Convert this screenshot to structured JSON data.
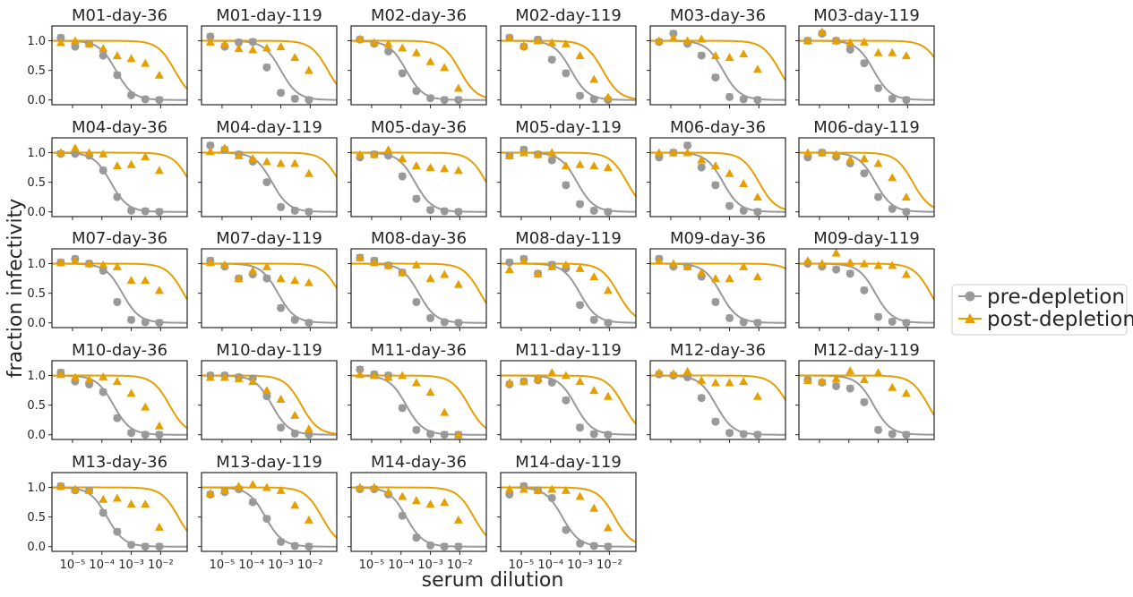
{
  "chart_data": {
    "type": "line",
    "xlabel": "serum dilution",
    "ylabel": "fraction infectivity",
    "xscale": "log",
    "xlim": [
      2e-06,
      0.08
    ],
    "ylim": [
      -0.08,
      1.25
    ],
    "x_ticks": [
      "10⁻⁵",
      "10⁻⁴",
      "10⁻³",
      "10⁻²"
    ],
    "y_ticks": [
      "0.0",
      "0.5",
      "1.0"
    ],
    "x": [
      4e-06,
      1.23e-05,
      3.7e-05,
      0.000111,
      0.000333,
      0.001,
      0.003,
      0.009
    ],
    "legend": {
      "placement": "right",
      "entries": [
        {
          "label": "pre-depletion",
          "color": "#999999",
          "marker": "circle"
        },
        {
          "label": "post-depletion",
          "color": "#E69F00",
          "marker": "triangle"
        }
      ]
    },
    "panels": [
      {
        "title": "M01-day-36",
        "ic50_pre": 0.0003,
        "ic50_post": 0.03,
        "pre": [
          1.05,
          0.9,
          0.95,
          0.75,
          0.42,
          0.08,
          0.01,
          0.0
        ],
        "post": [
          0.97,
          1.0,
          0.95,
          0.87,
          0.75,
          0.7,
          0.62,
          0.42
        ]
      },
      {
        "title": "M01-day-119",
        "ic50_pre": 0.001,
        "ic50_post": 0.04,
        "pre": [
          1.07,
          0.9,
          0.97,
          0.98,
          0.55,
          0.12,
          0.02,
          0.0
        ],
        "post": [
          0.98,
          0.95,
          0.87,
          0.85,
          0.88,
          0.9,
          0.72,
          0.5
        ]
      },
      {
        "title": "M02-day-36",
        "ic50_pre": 0.00015,
        "ic50_post": 0.01,
        "pre": [
          1.02,
          0.95,
          0.82,
          0.45,
          0.15,
          0.03,
          0.0,
          0.0
        ],
        "post": [
          1.03,
          0.97,
          0.95,
          0.88,
          0.8,
          0.65,
          0.55,
          0.2
        ]
      },
      {
        "title": "M02-day-119",
        "ic50_pre": 0.0005,
        "ic50_post": 0.006,
        "pre": [
          1.05,
          0.9,
          1.02,
          0.68,
          0.45,
          0.07,
          0.01,
          0.0
        ],
        "post": [
          1.05,
          0.92,
          1.0,
          0.97,
          0.95,
          0.75,
          0.35,
          0.05
        ]
      },
      {
        "title": "M03-day-36",
        "ic50_pre": 0.0006,
        "ic50_post": 0.05,
        "pre": [
          0.98,
          1.12,
          0.95,
          0.75,
          0.38,
          0.05,
          0.01,
          0.0
        ],
        "post": [
          1.0,
          1.05,
          1.0,
          1.03,
          0.75,
          0.72,
          0.78,
          0.52
        ]
      },
      {
        "title": "M03-day-119",
        "ic50_pre": 0.0007,
        "ic50_post": 0.15,
        "pre": [
          1.0,
          1.12,
          1.0,
          0.85,
          0.62,
          0.2,
          0.02,
          0.0
        ],
        "post": [
          1.0,
          1.15,
          1.0,
          0.97,
          0.98,
          0.8,
          0.8,
          0.75
        ]
      },
      {
        "title": "M04-day-36",
        "ic50_pre": 0.0002,
        "ic50_post": 0.1,
        "pre": [
          0.98,
          0.98,
          0.95,
          0.7,
          0.25,
          0.02,
          0.01,
          0.0
        ],
        "post": [
          1.0,
          1.08,
          1.0,
          0.98,
          0.78,
          0.8,
          0.93,
          0.7
        ]
      },
      {
        "title": "M04-day-119",
        "ic50_pre": 0.0005,
        "ic50_post": 0.1,
        "pre": [
          1.12,
          1.05,
          0.97,
          0.85,
          0.5,
          0.08,
          0.02,
          0.0
        ],
        "post": [
          1.02,
          1.08,
          0.95,
          0.9,
          0.85,
          0.82,
          0.82,
          0.65
        ]
      },
      {
        "title": "M05-day-36",
        "ic50_pre": 0.0003,
        "ic50_post": 0.08,
        "pre": [
          0.92,
          0.97,
          0.95,
          0.6,
          0.22,
          0.03,
          0.01,
          0.0
        ],
        "post": [
          0.97,
          0.97,
          1.05,
          0.9,
          0.78,
          0.75,
          0.73,
          0.7
        ]
      },
      {
        "title": "M05-day-119",
        "ic50_pre": 0.0008,
        "ic50_post": 0.04,
        "pre": [
          0.95,
          1.05,
          0.97,
          0.87,
          0.45,
          0.13,
          0.02,
          0.0
        ],
        "post": [
          0.95,
          1.0,
          0.97,
          1.0,
          0.78,
          0.8,
          0.78,
          0.75
        ]
      },
      {
        "title": "M06-day-36",
        "ic50_pre": 0.0006,
        "ic50_post": 0.01,
        "pre": [
          0.92,
          1.0,
          1.12,
          0.75,
          0.45,
          0.1,
          0.02,
          0.0
        ],
        "post": [
          1.0,
          1.0,
          1.0,
          0.88,
          0.78,
          0.65,
          0.48,
          0.25
        ]
      },
      {
        "title": "M06-day-119",
        "ic50_pre": 0.0008,
        "ic50_post": 0.015,
        "pre": [
          0.92,
          1.0,
          0.93,
          0.82,
          0.65,
          0.25,
          0.05,
          0.0
        ],
        "post": [
          1.0,
          1.0,
          0.97,
          0.88,
          0.9,
          0.82,
          0.58,
          0.25
        ]
      },
      {
        "title": "M07-day-36",
        "ic50_pre": 0.0005,
        "ic50_post": 0.06,
        "pre": [
          1.02,
          1.08,
          1.0,
          0.88,
          0.35,
          0.05,
          0.01,
          0.0
        ],
        "post": [
          1.02,
          1.05,
          1.0,
          0.98,
          0.95,
          0.72,
          0.72,
          0.55
        ]
      },
      {
        "title": "M07-day-119",
        "ic50_pre": 0.0008,
        "ic50_post": 0.1,
        "pre": [
          1.05,
          0.95,
          0.75,
          0.82,
          0.75,
          0.25,
          0.05,
          0.0
        ],
        "post": [
          1.02,
          0.98,
          0.75,
          0.88,
          0.95,
          0.75,
          0.72,
          0.68
        ]
      },
      {
        "title": "M08-day-36",
        "ic50_pre": 0.0004,
        "ic50_post": 0.05,
        "pre": [
          1.1,
          1.05,
          0.97,
          0.85,
          0.35,
          0.08,
          0.01,
          0.0
        ],
        "post": [
          1.1,
          1.02,
          0.97,
          0.85,
          0.98,
          0.75,
          0.82,
          0.65
        ]
      },
      {
        "title": "M08-day-119",
        "ic50_pre": 0.001,
        "ic50_post": 0.02,
        "pre": [
          1.02,
          1.08,
          0.83,
          0.98,
          0.92,
          0.3,
          0.05,
          0.0
        ],
        "post": [
          0.9,
          1.05,
          0.83,
          0.95,
          0.98,
          0.92,
          0.78,
          0.55
        ]
      },
      {
        "title": "M09-day-36",
        "ic50_pre": 0.0005,
        "ic50_post": 0.4,
        "pre": [
          1.08,
          0.95,
          0.95,
          0.78,
          0.35,
          0.08,
          0.01,
          0.0
        ],
        "post": [
          1.05,
          1.0,
          0.95,
          0.85,
          0.75,
          0.75,
          0.95,
          0.78
        ]
      },
      {
        "title": "M09-day-119",
        "ic50_pre": 0.0008,
        "ic50_post": 0.06,
        "pre": [
          1.0,
          0.95,
          0.9,
          0.83,
          0.55,
          0.1,
          0.02,
          0.0
        ],
        "post": [
          1.05,
          1.0,
          1.18,
          1.02,
          1.0,
          0.97,
          0.97,
          0.82
        ]
      },
      {
        "title": "M10-day-36",
        "ic50_pre": 0.00025,
        "ic50_post": 0.02,
        "pre": [
          1.05,
          0.9,
          0.85,
          0.72,
          0.28,
          0.03,
          0.0,
          0.0
        ],
        "post": [
          1.02,
          0.97,
          0.93,
          0.98,
          0.9,
          0.7,
          0.47,
          0.15
        ]
      },
      {
        "title": "M10-day-119",
        "ic50_pre": 0.0005,
        "ic50_post": 0.005,
        "pre": [
          1.0,
          1.0,
          0.97,
          0.95,
          0.65,
          0.12,
          0.02,
          0.0
        ],
        "post": [
          0.97,
          0.97,
          0.95,
          0.9,
          0.75,
          0.6,
          0.33,
          0.1
        ]
      },
      {
        "title": "M11-day-36",
        "ic50_pre": 0.00015,
        "ic50_post": 0.02,
        "pre": [
          1.1,
          1.02,
          1.0,
          0.45,
          0.08,
          0.01,
          0.0,
          0.0
        ],
        "post": [
          1.02,
          1.0,
          0.97,
          1.0,
          0.88,
          0.72,
          0.38,
          0.0
        ]
      },
      {
        "title": "M11-day-119",
        "ic50_pre": 0.0007,
        "ic50_post": 0.03,
        "pre": [
          0.85,
          0.9,
          0.92,
          0.88,
          0.58,
          0.12,
          0.01,
          0.0
        ],
        "post": [
          0.88,
          0.9,
          0.95,
          1.05,
          1.0,
          0.9,
          0.75,
          0.65
        ]
      },
      {
        "title": "M12-day-36",
        "ic50_pre": 0.00035,
        "ic50_post": 0.1,
        "pre": [
          1.02,
          1.0,
          0.97,
          0.62,
          0.22,
          0.03,
          0.01,
          0.0
        ],
        "post": [
          1.05,
          1.03,
          1.07,
          0.92,
          0.88,
          0.88,
          0.9,
          0.65
        ]
      },
      {
        "title": "M12-day-119",
        "ic50_pre": 0.0007,
        "ic50_post": 0.05,
        "pre": [
          0.92,
          0.88,
          0.82,
          0.78,
          0.55,
          0.08,
          0.01,
          0.0
        ],
        "post": [
          0.92,
          0.9,
          0.95,
          1.08,
          0.93,
          1.05,
          0.8,
          0.7
        ]
      },
      {
        "title": "M13-day-36",
        "ic50_pre": 0.00015,
        "ic50_post": 0.04,
        "pre": [
          1.02,
          0.95,
          0.95,
          0.57,
          0.25,
          0.03,
          0.0,
          0.0
        ],
        "post": [
          1.02,
          0.97,
          0.95,
          0.8,
          0.82,
          0.72,
          0.72,
          0.33
        ]
      },
      {
        "title": "M13-day-119",
        "ic50_pre": 0.0003,
        "ic50_post": 0.025,
        "pre": [
          0.88,
          0.92,
          0.97,
          0.75,
          0.47,
          0.08,
          0.01,
          0.0
        ],
        "post": [
          0.9,
          0.95,
          1.02,
          1.05,
          1.0,
          0.95,
          0.7,
          0.45
        ]
      },
      {
        "title": "M14-day-36",
        "ic50_pre": 0.00015,
        "ic50_post": 0.03,
        "pre": [
          0.97,
          0.97,
          0.88,
          0.52,
          0.15,
          0.02,
          0.0,
          0.0
        ],
        "post": [
          1.0,
          1.0,
          0.92,
          0.85,
          0.78,
          0.72,
          0.75,
          0.45
        ]
      },
      {
        "title": "M14-day-119",
        "ic50_pre": 0.00025,
        "ic50_post": 0.015,
        "pre": [
          0.88,
          1.02,
          0.95,
          0.82,
          0.28,
          0.05,
          0.01,
          0.0
        ],
        "post": [
          0.97,
          0.97,
          0.95,
          0.97,
          0.95,
          0.85,
          0.65,
          0.32
        ]
      }
    ]
  }
}
